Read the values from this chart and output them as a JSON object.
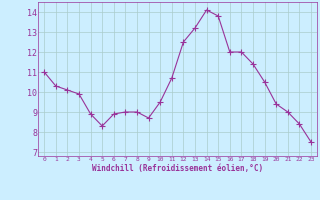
{
  "x": [
    0,
    1,
    2,
    3,
    4,
    5,
    6,
    7,
    8,
    9,
    10,
    11,
    12,
    13,
    14,
    15,
    16,
    17,
    18,
    19,
    20,
    21,
    22,
    23
  ],
  "y": [
    11.0,
    10.3,
    10.1,
    9.9,
    8.9,
    8.3,
    8.9,
    9.0,
    9.0,
    8.7,
    9.5,
    10.7,
    12.5,
    13.2,
    14.1,
    13.8,
    12.0,
    12.0,
    11.4,
    10.5,
    9.4,
    9.0,
    8.4,
    7.5
  ],
  "line_color": "#993399",
  "marker": "+",
  "marker_size": 4,
  "bg_color": "#cceeff",
  "grid_color": "#aacccc",
  "xlabel": "Windchill (Refroidissement éolien,°C)",
  "xlabel_color": "#993399",
  "tick_color": "#993399",
  "label_color": "#993399",
  "ylim": [
    6.8,
    14.5
  ],
  "xlim": [
    -0.5,
    23.5
  ],
  "yticks": [
    7,
    8,
    9,
    10,
    11,
    12,
    13,
    14
  ],
  "xticks": [
    0,
    1,
    2,
    3,
    4,
    5,
    6,
    7,
    8,
    9,
    10,
    11,
    12,
    13,
    14,
    15,
    16,
    17,
    18,
    19,
    20,
    21,
    22,
    23
  ]
}
